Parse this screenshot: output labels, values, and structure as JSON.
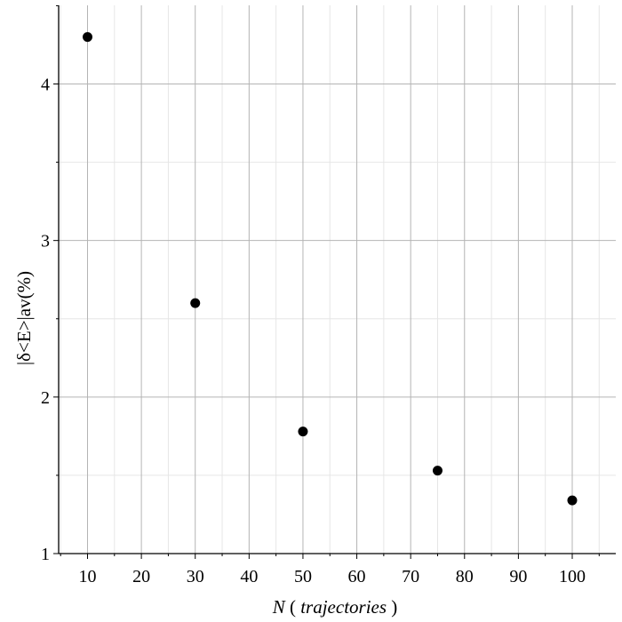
{
  "chart_data": {
    "type": "scatter",
    "title": "",
    "xlabel_prefix": "N",
    "xlabel_open": "(",
    "xlabel_unit": "trajectories",
    "xlabel_close": ")",
    "ylabel": "|δ<E>|av(%)",
    "xlim": [
      5,
      108
    ],
    "ylim": [
      1,
      4.5
    ],
    "x_ticks": [
      10,
      20,
      30,
      40,
      50,
      60,
      70,
      80,
      90,
      100
    ],
    "x_tick_labels": [
      "10",
      "20",
      "30",
      "40",
      "50",
      "60",
      "70",
      "80",
      "90",
      "100"
    ],
    "y_ticks": [
      1,
      2,
      3,
      4
    ],
    "y_tick_labels": [
      "1",
      "2",
      "3",
      "4"
    ],
    "grid": true,
    "legend": "none",
    "colors": {
      "marker": "#000000",
      "grid_major": "#b4b4b4",
      "grid_minor": "#e6e6e6",
      "axis": "#000000"
    },
    "series": [
      {
        "x": [
          10,
          30,
          50,
          75,
          100
        ],
        "y": [
          4.3,
          2.6,
          1.78,
          1.53,
          1.34
        ]
      }
    ]
  }
}
